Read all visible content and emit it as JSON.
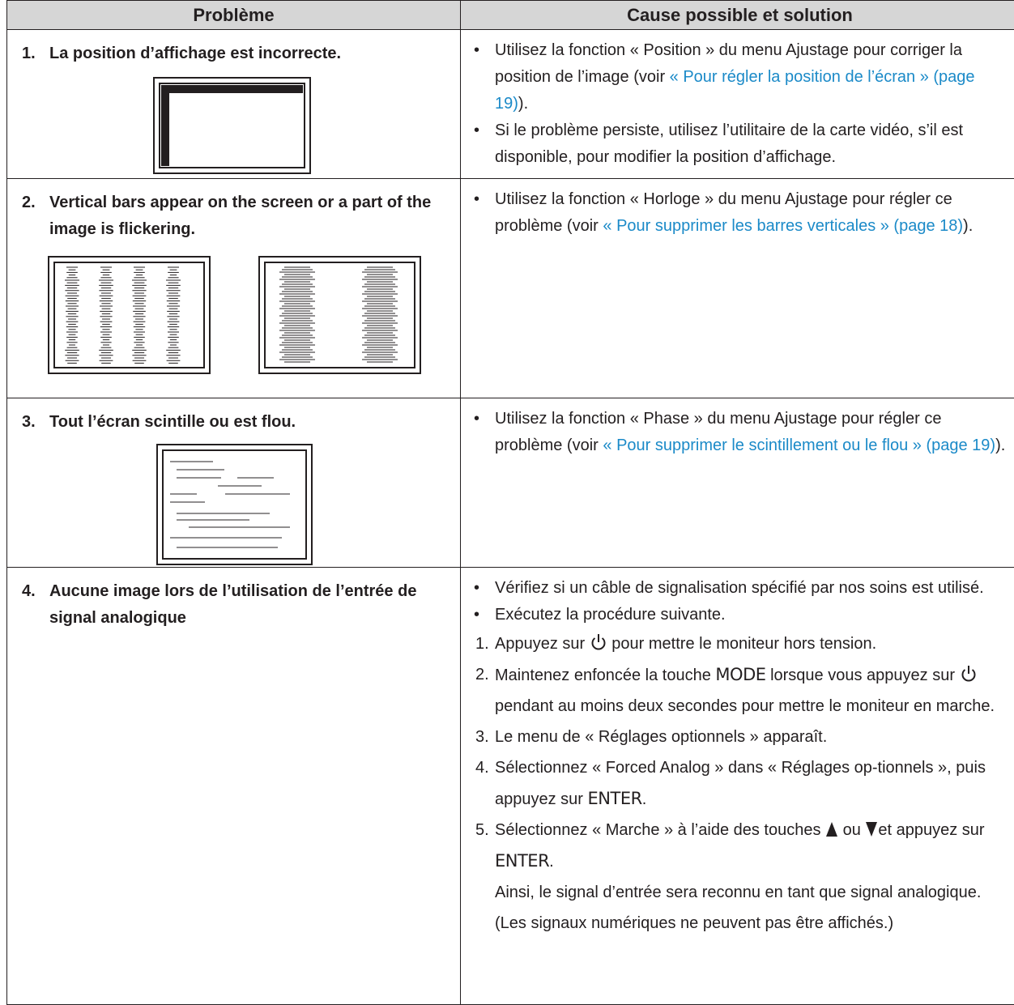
{
  "table": {
    "headers": [
      "Problème",
      "Cause possible et solution"
    ],
    "rows": [
      {
        "number": "1.",
        "problem": "La position d’affichage est incorrecte.",
        "solution": [
          {
            "text": "Utilisez la fonction « Position » du menu Ajustage pour corriger la position de l’image (voir ",
            "link": "« Pour régler la position de l’écran » (page 19)",
            "end": ")."
          },
          {
            "text": "Si le problème persiste, utilisez l’utilitaire de la carte vidéo, s’il est disponible, pour modifier la position d’affichage."
          }
        ]
      },
      {
        "number": "2.",
        "problem": "Vertical bars appear on the screen or a part of the image is flickering.",
        "solution": [
          {
            "text": "Utilisez la fonction « Horloge » du menu Ajustage pour régler ce problème (voir ",
            "link": "« Pour supprimer les barres verticales » (page 18)",
            "end": ")."
          }
        ]
      },
      {
        "number": "3.",
        "problem": "Tout l’écran scintille ou est flou.",
        "solution": [
          {
            "text": "Utilisez la fonction « Phase » du menu Ajustage pour régler ce problème (voir ",
            "link": "« Pour supprimer le scintillement ou le flou » (page 19)",
            "end": ")."
          }
        ]
      },
      {
        "number": "4.",
        "problem": "Aucune image lors de l’utilisation de l’entrée de signal analogique",
        "solution": [
          {
            "text": "Vérifiez si un câble de signalisation spécifié par nos soins est utilisé."
          },
          {
            "text": "Exécutez la procédure suivante."
          }
        ],
        "steps": [
          {
            "number": "1.",
            "parts": [
              "Appuyez sur ",
              "pour mettre le moniteur hors tension."
            ]
          },
          {
            "number": "2.",
            "parts": [
              "Maintenez enfoncée la touche ",
              "MODE",
              " lorsque vous appuyez sur ",
              "pendant au moins deux secondes pour mettre le moniteur en marche."
            ]
          },
          {
            "number": "3.",
            "parts": [
              "Le menu de « Réglages optionnels » apparaît."
            ]
          },
          {
            "number": "4.",
            "parts": [
              "Sélectionnez « Forced Analog » dans « Réglages op-tionnels », puis appuyez sur ",
              "ENTER",
              "."
            ]
          },
          {
            "number": "5.",
            "parts": [
              "Sélectionnez « Marche » à l’aide des touches ",
              " ou ",
              "et appuyez sur ",
              "ENTER",
              "."
            ],
            "note": "Ainsi, le signal d’entrée sera reconnu en tant que signal analogique. (Les signaux numériques ne peuvent pas être affichés.)"
          }
        ]
      }
    ]
  }
}
